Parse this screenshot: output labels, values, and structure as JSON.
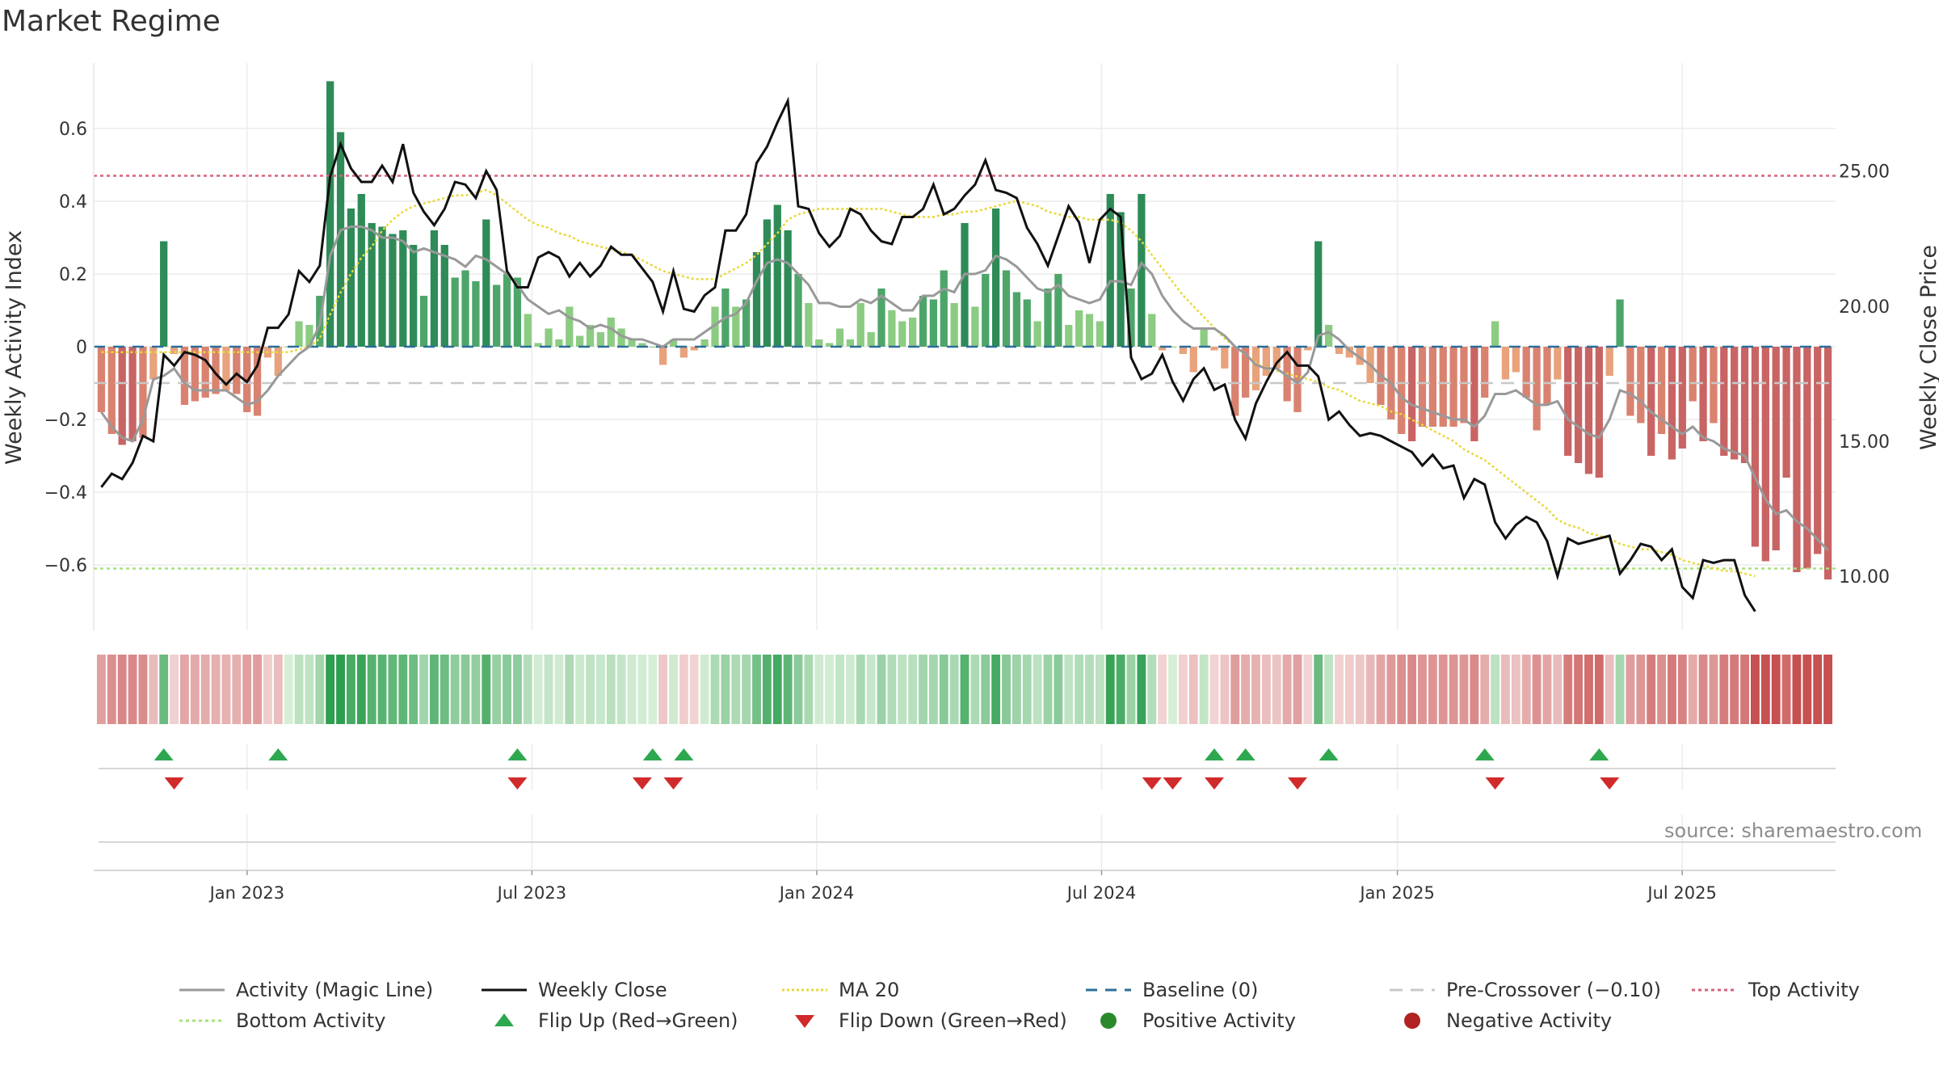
{
  "title": "Market Regime",
  "source": "source: sharemaestro.com",
  "chart_data": {
    "type": "bar",
    "title": "Market Regime",
    "ylabel_left": "Weekly Activity Index",
    "ylabel_right": "Weekly Close Price",
    "ylim_left": [
      -0.78,
      0.78
    ],
    "ylim_right": [
      8.0,
      29.0
    ],
    "yticks_left": [
      0.6,
      0.4,
      0.2,
      0,
      -0.2,
      -0.4,
      -0.6
    ],
    "ytick_labels_left": [
      "0.6",
      "0.4",
      "0.2",
      "0",
      "−0.2",
      "−0.4",
      "−0.6"
    ],
    "yticks_right": [
      25,
      20,
      15,
      10
    ],
    "ytick_labels_right": [
      "25.00",
      "20.00",
      "15.00",
      "10.00"
    ],
    "x_range": [
      "2022-09-26",
      "2025-10-13"
    ],
    "xticks": [
      "2023-01-02",
      "2023-07-03",
      "2024-01-01",
      "2024-07-01",
      "2025-01-06",
      "2025-07-07"
    ],
    "xtick_labels": [
      "Jan 2023",
      "Jul 2023",
      "Jan 2024",
      "Jul 2024",
      "Jan 2025",
      "Jul 2025"
    ],
    "grid": true,
    "reference_lines": {
      "baseline": 0,
      "pre_crossover": -0.1,
      "top_activity": 0.47,
      "bottom_activity": -0.61
    },
    "activity": [
      -0.18,
      -0.24,
      -0.27,
      -0.26,
      -0.25,
      -0.09,
      0.29,
      -0.02,
      -0.16,
      -0.15,
      -0.14,
      -0.13,
      -0.12,
      -0.13,
      -0.18,
      -0.19,
      -0.03,
      -0.08,
      0,
      0.07,
      0.06,
      0.14,
      0.73,
      0.59,
      0.38,
      0.42,
      0.34,
      0.33,
      0.31,
      0.32,
      0.28,
      0.14,
      0.32,
      0.28,
      0.19,
      0.21,
      0.18,
      0.35,
      0.17,
      0.2,
      0.19,
      0.09,
      0.01,
      0.05,
      0.02,
      0.11,
      0.03,
      0.06,
      0.04,
      0.08,
      0.05,
      0.02,
      0.01,
      0,
      -0.05,
      0.02,
      -0.03,
      -0.01,
      0.02,
      0.11,
      0.16,
      0.11,
      0.13,
      0.26,
      0.35,
      0.39,
      0.32,
      0.2,
      0.12,
      0.02,
      0.01,
      0.05,
      0.02,
      0.12,
      0.04,
      0.16,
      0.1,
      0.07,
      0.08,
      0.14,
      0.13,
      0.21,
      0.12,
      0.34,
      0.11,
      0.2,
      0.38,
      0.21,
      0.15,
      0.13,
      0.07,
      0.16,
      0.2,
      0.06,
      0.1,
      0.09,
      0.07,
      0.42,
      0.37,
      0.16,
      0.42,
      0.09,
      -0.01,
      0,
      -0.02,
      -0.07,
      0.05,
      -0.01,
      -0.06,
      -0.19,
      -0.14,
      -0.12,
      -0.08,
      -0.06,
      -0.15,
      -0.18,
      -0.01,
      0.29,
      0.06,
      -0.02,
      -0.03,
      -0.05,
      -0.1,
      -0.16,
      -0.2,
      -0.24,
      -0.26,
      -0.22,
      -0.22,
      -0.22,
      -0.22,
      -0.21,
      -0.26,
      -0.14,
      0.07,
      -0.09,
      -0.07,
      -0.14,
      -0.23,
      -0.16,
      -0.09,
      -0.3,
      -0.32,
      -0.35,
      -0.36,
      -0.08,
      0.13,
      -0.19,
      -0.21,
      -0.3,
      -0.24,
      -0.31,
      -0.28,
      -0.15,
      -0.26,
      -0.21,
      -0.3,
      -0.31,
      -0.32,
      -0.55,
      -0.59,
      -0.56,
      -0.36,
      -0.62,
      -0.61,
      -0.57,
      -0.64
    ],
    "magic_line": [
      -0.18,
      -0.22,
      -0.25,
      -0.26,
      -0.2,
      -0.09,
      -0.08,
      -0.06,
      -0.1,
      -0.12,
      -0.12,
      -0.12,
      -0.12,
      -0.14,
      -0.16,
      -0.15,
      -0.12,
      -0.08,
      -0.05,
      -0.02,
      0.0,
      0.06,
      0.25,
      0.32,
      0.33,
      0.33,
      0.32,
      0.3,
      0.3,
      0.29,
      0.26,
      0.27,
      0.26,
      0.25,
      0.24,
      0.22,
      0.25,
      0.24,
      0.22,
      0.2,
      0.17,
      0.13,
      0.11,
      0.09,
      0.1,
      0.08,
      0.07,
      0.05,
      0.06,
      0.05,
      0.03,
      0.02,
      0.02,
      0.01,
      0.0,
      0.02,
      0.02,
      0.02,
      0.04,
      0.06,
      0.08,
      0.09,
      0.12,
      0.18,
      0.23,
      0.24,
      0.23,
      0.2,
      0.17,
      0.12,
      0.12,
      0.11,
      0.11,
      0.13,
      0.12,
      0.14,
      0.12,
      0.1,
      0.1,
      0.14,
      0.14,
      0.16,
      0.15,
      0.2,
      0.2,
      0.21,
      0.25,
      0.24,
      0.22,
      0.19,
      0.16,
      0.15,
      0.17,
      0.14,
      0.13,
      0.12,
      0.13,
      0.18,
      0.18,
      0.17,
      0.23,
      0.2,
      0.14,
      0.1,
      0.07,
      0.05,
      0.05,
      0.05,
      0.03,
      0.0,
      -0.02,
      -0.05,
      -0.06,
      -0.06,
      -0.08,
      -0.1,
      -0.07,
      0.03,
      0.04,
      0.02,
      -0.01,
      -0.03,
      -0.05,
      -0.08,
      -0.1,
      -0.14,
      -0.16,
      -0.17,
      -0.18,
      -0.19,
      -0.2,
      -0.2,
      -0.22,
      -0.19,
      -0.13,
      -0.13,
      -0.12,
      -0.14,
      -0.16,
      -0.16,
      -0.15,
      -0.2,
      -0.22,
      -0.24,
      -0.25,
      -0.2,
      -0.12,
      -0.13,
      -0.15,
      -0.18,
      -0.2,
      -0.22,
      -0.24,
      -0.22,
      -0.25,
      -0.26,
      -0.28,
      -0.29,
      -0.3,
      -0.36,
      -0.42,
      -0.46,
      -0.45,
      -0.48,
      -0.5,
      -0.53,
      -0.56
    ],
    "weekly_close": [
      13.3,
      13.8,
      13.6,
      14.2,
      15.2,
      15.0,
      18.2,
      17.8,
      18.3,
      18.2,
      18.0,
      17.5,
      17.1,
      17.5,
      17.2,
      17.8,
      19.2,
      19.2,
      19.7,
      21.3,
      20.9,
      21.5,
      24.8,
      26.0,
      25.1,
      24.6,
      24.6,
      25.2,
      24.6,
      26.0,
      24.2,
      23.5,
      23.0,
      23.6,
      24.6,
      24.5,
      24.0,
      25.0,
      24.3,
      21.3,
      20.7,
      20.7,
      21.8,
      22.0,
      21.8,
      21.1,
      21.6,
      21.1,
      21.5,
      22.2,
      21.9,
      21.9,
      21.4,
      20.9,
      19.8,
      21.3,
      19.9,
      19.8,
      20.4,
      20.7,
      22.8,
      22.8,
      23.4,
      25.3,
      25.9,
      26.8,
      27.6,
      23.7,
      23.6,
      22.7,
      22.2,
      22.6,
      23.6,
      23.4,
      22.8,
      22.4,
      22.3,
      23.3,
      23.3,
      23.6,
      24.5,
      23.4,
      23.6,
      24.1,
      24.5,
      25.4,
      24.3,
      24.2,
      24.0,
      22.9,
      22.3,
      21.5,
      22.6,
      23.7,
      23.1,
      21.6,
      23.2,
      23.6,
      23.3,
      18.1,
      17.3,
      17.5,
      18.2,
      17.2,
      16.5,
      17.3,
      17.7,
      16.9,
      17.1,
      15.8,
      15.1,
      16.4,
      17.2,
      17.9,
      18.3,
      17.8,
      17.8,
      17.4,
      15.8,
      16.1,
      15.6,
      15.2,
      15.3,
      15.2,
      15.0,
      14.8,
      14.6,
      14.1,
      14.5,
      14.0,
      14.1,
      12.9,
      13.6,
      13.4,
      12.0,
      11.4,
      11.9,
      12.2,
      12.0,
      11.3,
      10.0,
      11.4,
      11.2,
      11.3,
      11.4,
      11.5,
      10.1,
      10.6,
      11.2,
      11.1,
      10.6,
      11.0,
      9.6,
      9.2,
      10.6,
      10.5,
      10.6,
      10.6,
      9.3,
      8.7
    ],
    "ma20": [
      18.3,
      18.3,
      18.3,
      18.3,
      18.3,
      18.3,
      18.3,
      18.3,
      18.3,
      18.3,
      18.3,
      18.3,
      18.3,
      18.3,
      18.3,
      18.3,
      18.3,
      18.3,
      18.3,
      18.4,
      18.5,
      18.8,
      19.7,
      20.5,
      21.2,
      21.8,
      22.2,
      22.8,
      23.2,
      23.5,
      23.7,
      23.8,
      23.9,
      24.0,
      24.1,
      24.1,
      24.2,
      24.3,
      24.1,
      23.8,
      23.5,
      23.2,
      23.0,
      22.9,
      22.7,
      22.6,
      22.4,
      22.3,
      22.2,
      22.1,
      22.0,
      21.9,
      21.7,
      21.5,
      21.3,
      21.2,
      21.1,
      21.0,
      21.0,
      21.0,
      21.2,
      21.4,
      21.6,
      21.9,
      22.3,
      22.7,
      23.2,
      23.4,
      23.5,
      23.6,
      23.6,
      23.6,
      23.6,
      23.6,
      23.6,
      23.6,
      23.5,
      23.4,
      23.3,
      23.3,
      23.3,
      23.4,
      23.4,
      23.5,
      23.5,
      23.6,
      23.7,
      23.8,
      23.9,
      23.8,
      23.7,
      23.5,
      23.4,
      23.3,
      23.3,
      23.2,
      23.2,
      23.2,
      23.1,
      22.8,
      22.4,
      21.9,
      21.4,
      20.9,
      20.4,
      20.0,
      19.6,
      19.2,
      18.8,
      18.5,
      18.2,
      17.9,
      17.7,
      17.6,
      17.5,
      17.4,
      17.3,
      17.2,
      17.0,
      16.9,
      16.7,
      16.5,
      16.4,
      16.3,
      16.1,
      16.0,
      15.8,
      15.6,
      15.4,
      15.2,
      15.0,
      14.7,
      14.5,
      14.3,
      14.0,
      13.7,
      13.4,
      13.1,
      12.8,
      12.5,
      12.1,
      11.9,
      11.8,
      11.6,
      11.5,
      11.4,
      11.2,
      11.1,
      11.0,
      11.0,
      10.9,
      10.8,
      10.6,
      10.5,
      10.4,
      10.3,
      10.2,
      10.2,
      10.1,
      10.0
    ],
    "flip_up_weeks": [
      6,
      17,
      40,
      53,
      56,
      107,
      110,
      118,
      133,
      144
    ],
    "flip_down_weeks": [
      7,
      40,
      52,
      55,
      101,
      103,
      107,
      115,
      134,
      145
    ],
    "legend_position": "bottom",
    "legend": [
      {
        "label": "Activity (Magic Line)",
        "kind": "line",
        "color": "#999999",
        "dash": ""
      },
      {
        "label": "Weekly Close",
        "kind": "line",
        "color": "#111111",
        "dash": ""
      },
      {
        "label": "MA 20",
        "kind": "line",
        "color": "#e8d93a",
        "dash": "3,3"
      },
      {
        "label": "Baseline (0)",
        "kind": "line",
        "color": "#2b6e9a",
        "dash": "14,10"
      },
      {
        "label": "Pre-Crossover (−0.10)",
        "kind": "line",
        "color": "#c8c8c8",
        "dash": "16,10"
      },
      {
        "label": "Top Activity",
        "kind": "line",
        "color": "#d9627a",
        "dash": "4,4"
      },
      {
        "label": "Bottom Activity",
        "kind": "line",
        "color": "#a8e07a",
        "dash": "4,4"
      },
      {
        "label": "Flip Up (Red→Green)",
        "kind": "up",
        "color": "#2ea84f",
        "dash": ""
      },
      {
        "label": "Flip Down (Green→Red)",
        "kind": "down",
        "color": "#d12a2a",
        "dash": ""
      },
      {
        "label": "Positive Activity",
        "kind": "dot",
        "color": "#2a8a2a",
        "dash": ""
      },
      {
        "label": "Negative Activity",
        "kind": "dot",
        "color": "#b22222",
        "dash": ""
      }
    ]
  }
}
